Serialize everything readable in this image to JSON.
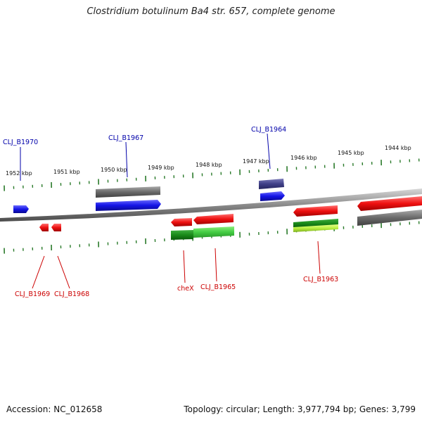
{
  "title": "Clostridium botulinum Ba4 str. 657, complete genome",
  "footer": {
    "accession": "Accession: NC_012658",
    "topology": "Topology: circular; Length: 3,977,794 bp; Genes: 3,799"
  },
  "colors": {
    "forward_cds": "#1010e0",
    "reverse_cds": "#e01010",
    "gene_bar": "#666666",
    "forward_label": "#0000aa",
    "reverse_label": "#cc0000",
    "ticks": "#2a7a2a",
    "backbone": "#888888"
  },
  "scale_ticks": [
    {
      "label": "1952 kbp"
    },
    {
      "label": "1951 kbp"
    },
    {
      "label": "1950 kbp"
    },
    {
      "label": "1949 kbp"
    },
    {
      "label": "1948 kbp"
    },
    {
      "label": "1947 kbp"
    },
    {
      "label": "1946 kbp"
    },
    {
      "label": "1945 kbp"
    },
    {
      "label": "1944 kbp"
    }
  ],
  "gene_labels_forward": [
    {
      "name": "CLJ_B1970"
    },
    {
      "name": "CLJ_B1967"
    },
    {
      "name": "CLJ_B1964"
    }
  ],
  "gene_labels_reverse": [
    {
      "name": "CLJ_B1969"
    },
    {
      "name": "CLJ_B1968"
    },
    {
      "name": "cheX"
    },
    {
      "name": "CLJ_B1965"
    },
    {
      "name": "CLJ_B1963"
    }
  ]
}
